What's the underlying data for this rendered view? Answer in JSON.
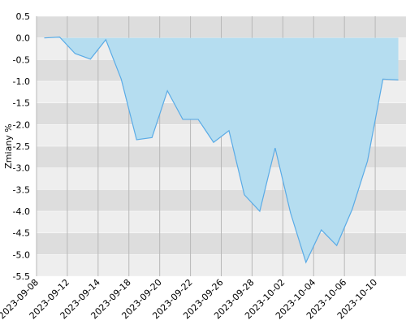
{
  "chart_data": {
    "type": "area",
    "y_label": "Zmiany %",
    "categories": [
      "2023-09-08",
      null,
      "2023-09-12",
      null,
      "2023-09-14",
      null,
      "2023-09-18",
      null,
      "2023-09-20",
      null,
      "2023-09-22",
      null,
      "2023-09-26",
      null,
      "2023-09-28",
      null,
      "2023-10-02",
      null,
      "2023-10-04",
      null,
      "2023-10-06",
      null,
      "2023-10-10",
      null
    ],
    "values": [
      0.0,
      0.02,
      -0.36,
      -0.49,
      -0.04,
      -0.95,
      -2.35,
      -2.3,
      -1.22,
      -1.88,
      -1.88,
      -2.41,
      -2.14,
      -3.62,
      -4.0,
      -2.54,
      -4.04,
      -5.18,
      -4.43,
      -4.79,
      -3.96,
      -2.84,
      -0.95,
      -0.97
    ],
    "color": "#5aabe6",
    "fill": "#b5ddf0",
    "ylim": [
      -5.5,
      0.5
    ],
    "yticks": [
      0.5,
      {
        "value": 0,
        "label": "0.0"
      },
      -0.5,
      {
        "value": -1,
        "label": "-1.0"
      },
      -1.5,
      {
        "value": -2,
        "label": "-2.0"
      },
      -2.5,
      {
        "value": -3,
        "label": "-3.0"
      },
      -3.5,
      {
        "value": -4,
        "label": "-4.0"
      },
      -4.5,
      {
        "value": -5,
        "label": "-5.0"
      },
      -5.5
    ],
    "grid": true
  }
}
